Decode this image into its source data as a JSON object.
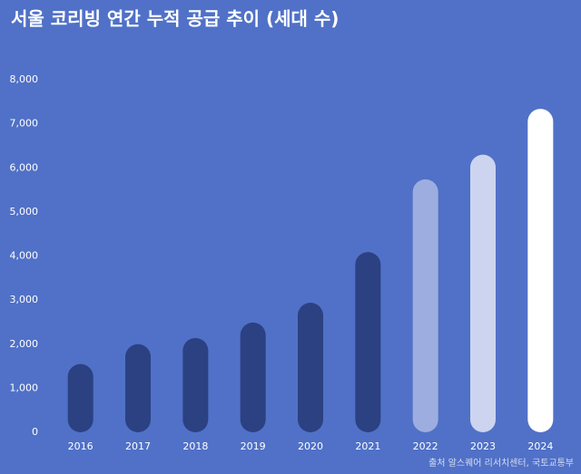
{
  "chart_data": {
    "type": "bar",
    "title": "서울 코리빙 연간 누적 공급 추이 (세대 수)",
    "categories": [
      "2016",
      "2017",
      "2018",
      "2019",
      "2020",
      "2021",
      "2022",
      "2023",
      "2024"
    ],
    "values": [
      1550,
      2000,
      2140,
      2490,
      2940,
      4090,
      5740,
      6300,
      7340
    ],
    "colors": [
      "#2b4182",
      "#2b4182",
      "#2b4182",
      "#2b4182",
      "#2b4182",
      "#2b4182",
      "#9dade0",
      "#ccd4ef",
      "#ffffff"
    ],
    "ylim": [
      0,
      8000
    ],
    "yticks": [
      0,
      {
        "value": 1000,
        "label": "1,000"
      },
      {
        "value": 2000,
        "label": "2,000"
      },
      {
        "value": 3000,
        "label": "3,000"
      },
      {
        "value": 4000,
        "label": "4,000"
      },
      {
        "value": 5000,
        "label": "5,000"
      },
      {
        "value": 6000,
        "label": "6,000"
      },
      {
        "value": 7000,
        "label": "7,000"
      },
      {
        "value": 8000,
        "label": "8,000"
      }
    ],
    "grid": false,
    "source": "출처  알스퀘어 리서치센터, 국토교통부"
  }
}
